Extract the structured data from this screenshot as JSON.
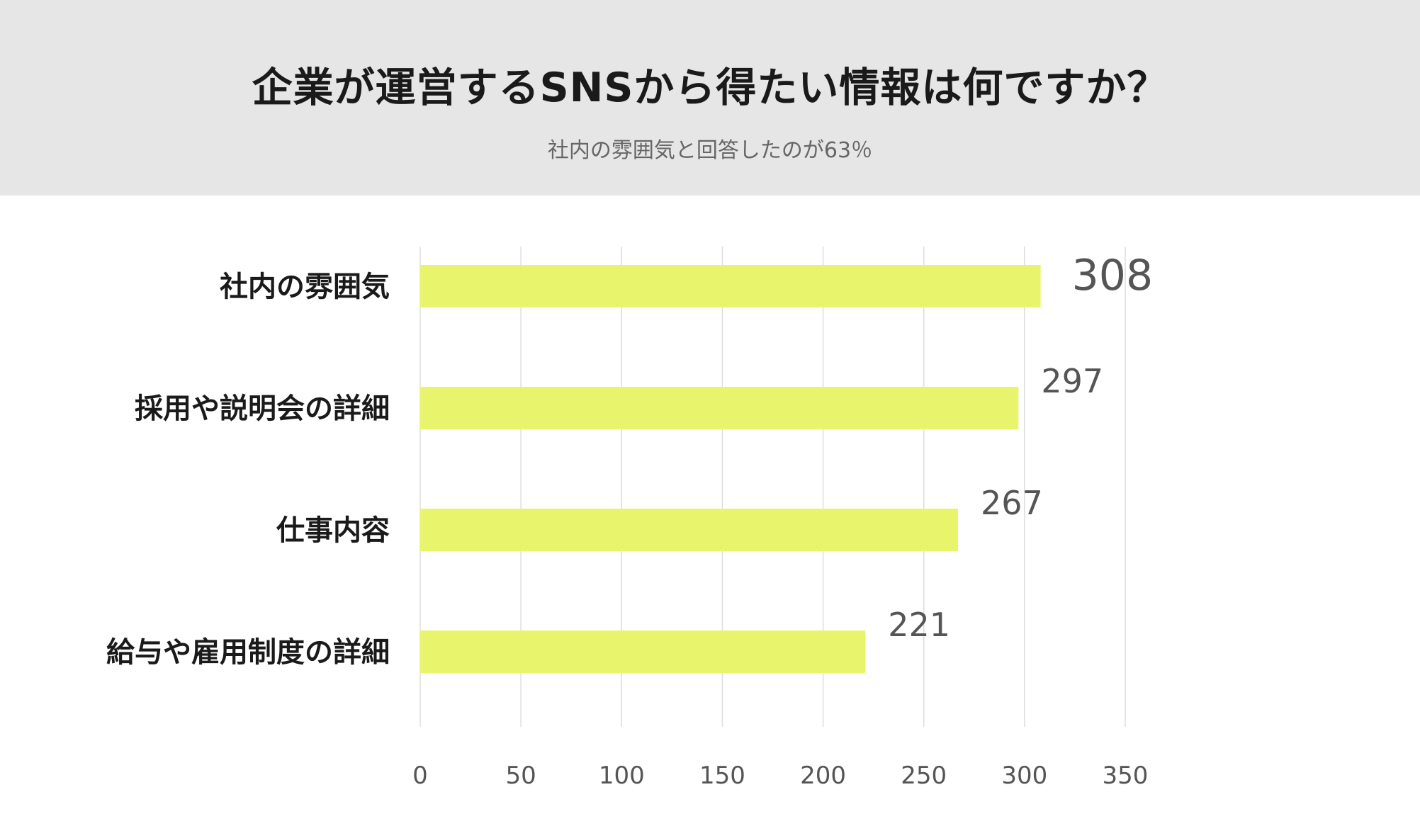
{
  "header": {
    "title": "企業が運営するSNSから得たい情報は何ですか？",
    "subtitle": "社内の雰囲気と回答したのが63％"
  },
  "colors": {
    "header_bg": "#e6e6e6",
    "bar": "#e8f56c",
    "grid": "#dddddd",
    "value_text": "#555555",
    "category_text": "#1a1a1a",
    "tick_text": "#555555"
  },
  "chart_data": {
    "type": "bar",
    "orientation": "horizontal",
    "categories": [
      "社内の雰囲気",
      "採用や説明会の詳細",
      "仕事内容",
      "給与や雇用制度の詳細"
    ],
    "values": [
      308,
      297,
      267,
      221
    ],
    "data_labels": [
      "308",
      "297",
      "267",
      "221"
    ],
    "xlim": [
      0,
      350
    ],
    "xticks": [
      "0",
      "50",
      "100",
      "150",
      "200",
      "250",
      "300",
      "350"
    ],
    "grid": "vertical",
    "legend": "none"
  }
}
